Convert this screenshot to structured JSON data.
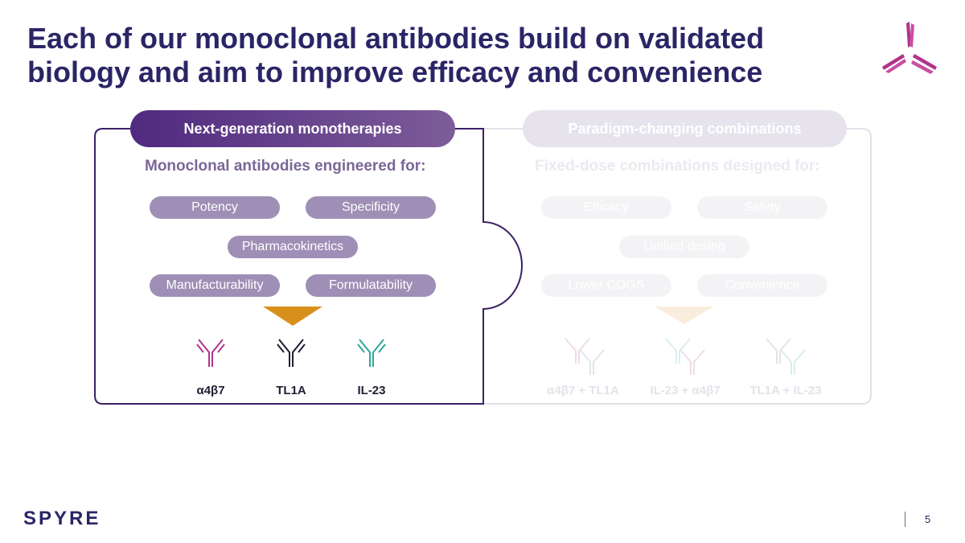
{
  "slide": {
    "title_line1": "Each of our monoclonal antibodies build on validated",
    "title_line2": "biology and aim to improve efficacy and convenience",
    "page_number": "5",
    "brand": "SPYRE"
  },
  "colors": {
    "title": "#2b2566",
    "accent_purple": "#4f2a7f",
    "pill_purple": "#9f8fb6",
    "arrow_orange": "#d8901c",
    "magenta": "#b0348c",
    "teal": "#2fa89a"
  },
  "left_panel": {
    "tab_label": "Next-generation monotherapies",
    "subheading": "Monoclonal antibodies engineered for:",
    "pills": [
      "Potency",
      "Specificity",
      "Pharmacokinetics",
      "Manufacturability",
      "Formulatability"
    ],
    "antibodies": [
      {
        "label": "α4β7",
        "icon": "antibody-magenta-icon"
      },
      {
        "label": "TL1A",
        "icon": "antibody-navy-icon"
      },
      {
        "label": "IL-23",
        "icon": "antibody-teal-icon"
      }
    ]
  },
  "right_panel": {
    "tab_label": "Paradigm-changing combinations",
    "subheading": "Fixed-dose combinations designed for:",
    "pills": [
      "Efficacy",
      "Safety",
      "Unified dosing",
      "Lower COGS",
      "Convenience"
    ],
    "combinations": [
      {
        "label": "α4β7 + TL1A",
        "icon": "antibody-pair-icon"
      },
      {
        "label": "IL-23 + α4β7",
        "icon": "antibody-pair-icon"
      },
      {
        "label": "TL1A + IL-23",
        "icon": "antibody-pair-icon"
      }
    ]
  }
}
